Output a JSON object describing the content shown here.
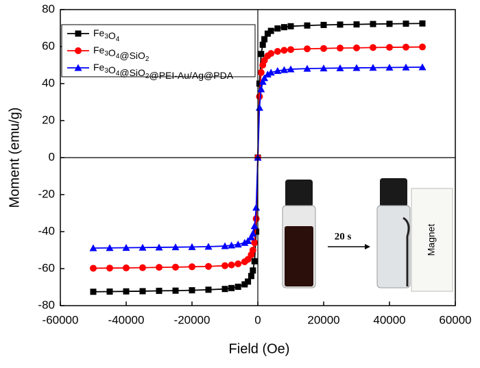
{
  "chart_data": {
    "type": "line",
    "xlabel": "Field (Oe)",
    "ylabel": "Moment (emu/g)",
    "x": [
      -50000,
      -45000,
      -40000,
      -35000,
      -30000,
      -25000,
      -20000,
      -15000,
      -10000,
      -8000,
      -6000,
      -4000,
      -3000,
      -2000,
      -1500,
      -1000,
      -500,
      0,
      500,
      1000,
      1500,
      2000,
      3000,
      4000,
      6000,
      8000,
      10000,
      15000,
      20000,
      25000,
      30000,
      35000,
      40000,
      45000,
      50000
    ],
    "series": [
      {
        "name": "Fe3O4",
        "color": "#000000",
        "marker": "square",
        "values": [
          -72.5,
          -72.4,
          -72.3,
          -72.2,
          -72.0,
          -71.9,
          -71.7,
          -71.4,
          -71.0,
          -70.5,
          -69.8,
          -68.5,
          -67,
          -64,
          -61,
          -56,
          -40,
          0,
          40,
          56,
          61,
          64,
          67,
          68.5,
          69.8,
          70.5,
          71.0,
          71.4,
          71.7,
          71.9,
          72.0,
          72.2,
          72.3,
          72.4,
          72.5
        ]
      },
      {
        "name": "Fe3O4@SiO2",
        "color": "#ff0000",
        "marker": "circle",
        "values": [
          -59.8,
          -59.7,
          -59.6,
          -59.5,
          -59.3,
          -59.2,
          -59.0,
          -58.8,
          -58.4,
          -58.0,
          -57.4,
          -56.3,
          -55,
          -52.5,
          -50,
          -46,
          -33,
          0,
          33,
          46,
          50,
          52.5,
          55,
          56.3,
          57.4,
          58.0,
          58.4,
          58.8,
          59.0,
          59.2,
          59.3,
          59.5,
          59.6,
          59.7,
          59.8
        ]
      },
      {
        "name": "Fe3O4@SiO2@PEI-Au/Ag@PDA",
        "color": "#0000ff",
        "marker": "triangle",
        "values": [
          -48.9,
          -48.8,
          -48.7,
          -48.6,
          -48.5,
          -48.4,
          -48.3,
          -48.1,
          -47.8,
          -47.4,
          -46.9,
          -46.0,
          -45,
          -43,
          -41,
          -37,
          -27,
          0,
          27,
          37,
          41,
          43,
          45,
          46.0,
          46.9,
          47.4,
          47.8,
          48.1,
          48.3,
          48.4,
          48.5,
          48.6,
          48.7,
          48.8,
          48.9
        ]
      }
    ],
    "xlim": [
      -60000,
      60000
    ],
    "xticks": [
      -60000,
      -40000,
      -20000,
      0,
      20000,
      40000,
      60000
    ],
    "ylim": [
      -80,
      80
    ],
    "yticks": [
      -80,
      -60,
      -40,
      -20,
      0,
      20,
      40,
      60,
      80
    ],
    "legend": "upper left",
    "annotations": {
      "arrow_label": "20 s",
      "magnet_label": "Magnet"
    }
  }
}
